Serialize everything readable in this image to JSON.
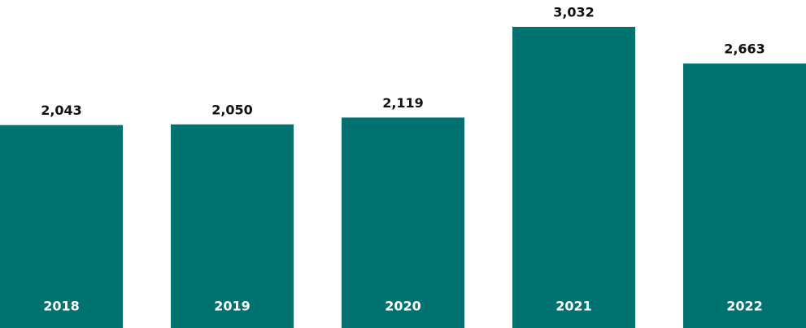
{
  "chart_data": {
    "type": "bar",
    "categories": [
      "2018",
      "2019",
      "2020",
      "2021",
      "2022"
    ],
    "values": [
      2043,
      2050,
      2119,
      3032,
      2663
    ],
    "value_labels": [
      "2,043",
      "2,050",
      "2,119",
      "3,032",
      "2,663"
    ],
    "color": "#007370"
  }
}
